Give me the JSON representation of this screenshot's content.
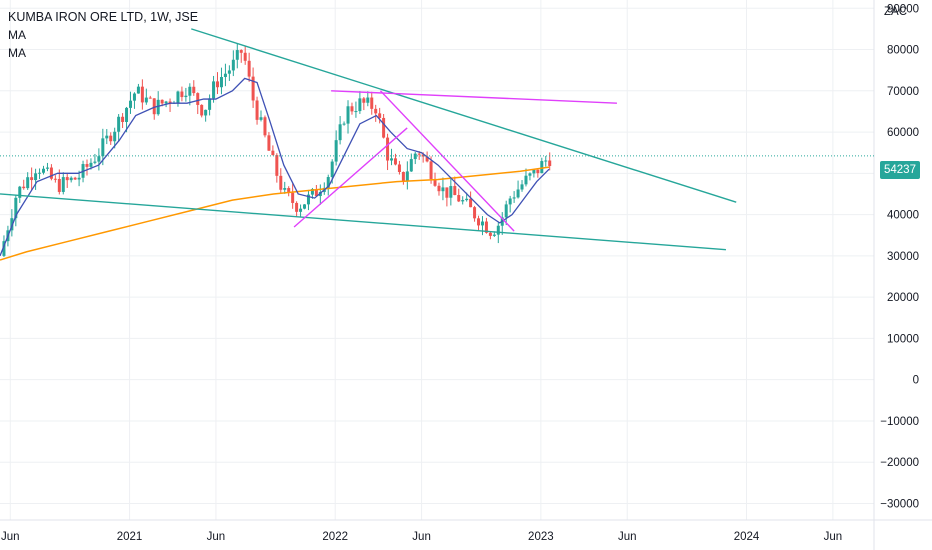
{
  "header": {
    "title": "KUMBA IRON ORE LTD, 1W, JSE",
    "indicator_1": "MA",
    "indicator_2": "MA"
  },
  "price_axis": {
    "unit": "ZAC",
    "last_price_label": "54237"
  },
  "chart_data": {
    "type": "candlestick",
    "y_ticks": [
      "90000",
      "80000",
      "70000",
      "60000",
      "50000",
      "40000",
      "30000",
      "20000",
      "10000",
      "0",
      "−10000",
      "−20000",
      "−30000"
    ],
    "y_tick_values": [
      90000,
      80000,
      70000,
      60000,
      50000,
      40000,
      30000,
      20000,
      10000,
      0,
      -10000,
      -20000,
      -30000
    ],
    "ylim": [
      -34000,
      92000
    ],
    "x_ticks": [
      {
        "label": "Jun",
        "t": 2020.42
      },
      {
        "label": "2021",
        "t": 2021.0
      },
      {
        "label": "Jun",
        "t": 2021.42
      },
      {
        "label": "2022",
        "t": 2022.0
      },
      {
        "label": "Jun",
        "t": 2022.42
      },
      {
        "label": "2023",
        "t": 2023.0
      },
      {
        "label": "Jun",
        "t": 2023.42
      },
      {
        "label": "2024",
        "t": 2024.0
      },
      {
        "label": "Jun",
        "t": 2024.42
      }
    ],
    "xlim": [
      2020.37,
      2024.62
    ],
    "last_price": 54237,
    "colors": {
      "up": "#26a69a",
      "down": "#ef5350",
      "ma_fast": "#3f51b5",
      "ma_slow": "#ff9800",
      "trend_green": "#26a69a",
      "trend_magenta": "#e040fb",
      "grid": "#eef0f3",
      "text": "#131722"
    },
    "price_path": [
      [
        2020.37,
        30000
      ],
      [
        2020.45,
        45000
      ],
      [
        2020.55,
        52000
      ],
      [
        2020.65,
        47000
      ],
      [
        2020.75,
        49000
      ],
      [
        2020.85,
        55000
      ],
      [
        2020.95,
        63000
      ],
      [
        2021.03,
        70000
      ],
      [
        2021.12,
        66000
      ],
      [
        2021.2,
        68000
      ],
      [
        2021.28,
        71000
      ],
      [
        2021.36,
        65000
      ],
      [
        2021.42,
        72000
      ],
      [
        2021.5,
        76000
      ],
      [
        2021.55,
        80000
      ],
      [
        2021.6,
        68000
      ],
      [
        2021.68,
        55000
      ],
      [
        2021.75,
        45000
      ],
      [
        2021.82,
        42000
      ],
      [
        2021.9,
        45000
      ],
      [
        2021.97,
        50000
      ],
      [
        2022.05,
        65000
      ],
      [
        2022.12,
        67000
      ],
      [
        2022.2,
        66000
      ],
      [
        2022.25,
        55000
      ],
      [
        2022.32,
        48000
      ],
      [
        2022.4,
        56000
      ],
      [
        2022.45,
        52000
      ],
      [
        2022.52,
        46000
      ],
      [
        2022.6,
        44000
      ],
      [
        2022.68,
        40000
      ],
      [
        2022.76,
        36000
      ],
      [
        2022.8,
        38000
      ],
      [
        2022.85,
        44000
      ],
      [
        2022.92,
        48000
      ],
      [
        2022.97,
        50000
      ],
      [
        2023.02,
        53000
      ],
      [
        2023.06,
        54237
      ]
    ],
    "ma_fast": [
      [
        2020.37,
        30000
      ],
      [
        2020.45,
        40000
      ],
      [
        2020.55,
        48000
      ],
      [
        2020.65,
        50000
      ],
      [
        2020.75,
        50000
      ],
      [
        2020.85,
        52000
      ],
      [
        2020.95,
        58000
      ],
      [
        2021.03,
        64000
      ],
      [
        2021.12,
        66000
      ],
      [
        2021.2,
        67000
      ],
      [
        2021.28,
        67000
      ],
      [
        2021.36,
        68000
      ],
      [
        2021.42,
        68000
      ],
      [
        2021.5,
        70000
      ],
      [
        2021.56,
        73000
      ],
      [
        2021.62,
        72000
      ],
      [
        2021.68,
        63000
      ],
      [
        2021.75,
        52000
      ],
      [
        2021.82,
        45000
      ],
      [
        2021.9,
        44000
      ],
      [
        2021.97,
        47000
      ],
      [
        2022.05,
        55000
      ],
      [
        2022.12,
        62000
      ],
      [
        2022.2,
        64000
      ],
      [
        2022.27,
        60000
      ],
      [
        2022.35,
        56000
      ],
      [
        2022.42,
        55000
      ],
      [
        2022.5,
        52000
      ],
      [
        2022.58,
        48000
      ],
      [
        2022.66,
        44000
      ],
      [
        2022.74,
        40000
      ],
      [
        2022.8,
        38000
      ],
      [
        2022.86,
        40000
      ],
      [
        2022.92,
        44000
      ],
      [
        2022.98,
        48000
      ],
      [
        2023.04,
        51000
      ]
    ],
    "ma_slow": [
      [
        2020.37,
        29000
      ],
      [
        2020.5,
        31000
      ],
      [
        2020.7,
        33500
      ],
      [
        2020.9,
        36000
      ],
      [
        2021.1,
        38500
      ],
      [
        2021.3,
        41000
      ],
      [
        2021.5,
        43500
      ],
      [
        2021.7,
        45000
      ],
      [
        2021.9,
        46000
      ],
      [
        2022.1,
        47000
      ],
      [
        2022.3,
        48000
      ],
      [
        2022.5,
        48500
      ],
      [
        2022.7,
        49500
      ],
      [
        2022.9,
        50500
      ],
      [
        2023.04,
        51500
      ]
    ],
    "trendlines": [
      {
        "color": "trend_green",
        "from": [
          2021.3,
          85000
        ],
        "to": [
          2023.95,
          43000
        ]
      },
      {
        "color": "trend_green",
        "from": [
          2020.37,
          45000
        ],
        "to": [
          2023.9,
          31500
        ]
      },
      {
        "color": "trend_magenta",
        "from": [
          2021.98,
          70000
        ],
        "to": [
          2023.37,
          67000
        ]
      },
      {
        "color": "trend_magenta",
        "from": [
          2022.22,
          70000
        ],
        "to": [
          2022.87,
          36000
        ]
      },
      {
        "color": "trend_magenta",
        "from": [
          2021.8,
          37000
        ],
        "to": [
          2022.35,
          61000
        ]
      }
    ]
  }
}
